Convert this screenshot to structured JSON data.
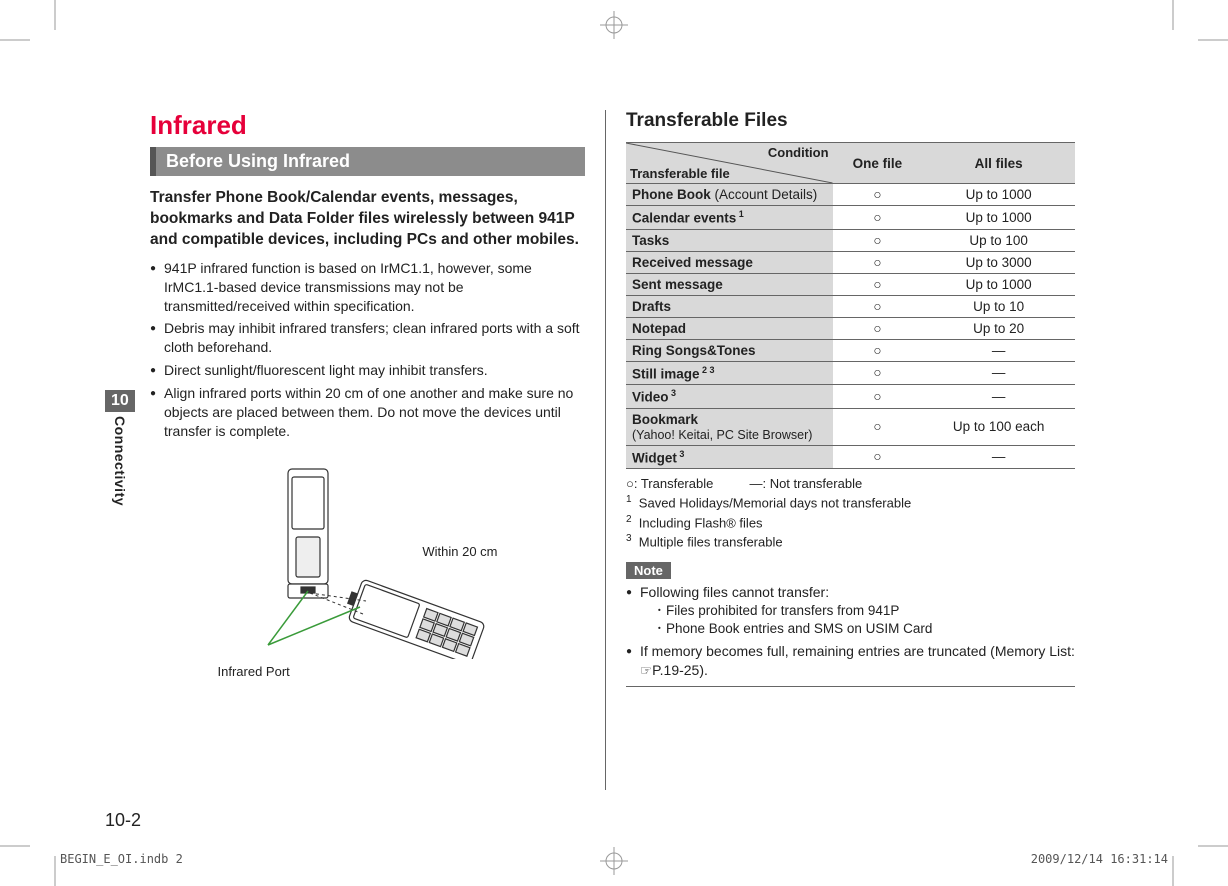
{
  "chapter": {
    "number": "10",
    "label": "Connectivity",
    "pageNumber": "10-2"
  },
  "left": {
    "title": "Infrared",
    "subhead": "Before Using Infrared",
    "lead": "Transfer Phone Book/Calendar events, messages, bookmarks and Data Folder files wirelessly between 941P and compatible devices, including PCs and other mobiles.",
    "bullets": [
      "941P infrared function is based on IrMC1.1, however, some IrMC1.1-based device transmissions may not be transmitted/received within specification.",
      "Debris may inhibit infrared transfers; clean infrared ports with a soft cloth beforehand.",
      "Direct sunlight/fluorescent light may inhibit transfers.",
      "Align infrared ports within 20 cm of one another and make sure no objects are placed between them. Do not move the devices until transfer is complete."
    ],
    "diagram": {
      "portLabel": "Infrared Port",
      "distanceLabel": "Within 20 cm"
    }
  },
  "right": {
    "title": "Transferable Files",
    "header": {
      "diagTop": "Condition",
      "diagBottom": "Transferable file",
      "col1": "One file",
      "col2": "All files"
    },
    "rows": [
      {
        "label": "Phone Book",
        "sub": " (Account Details)",
        "one": "○",
        "all": "Up to 1000"
      },
      {
        "label": "Calendar events",
        "fn": " 1",
        "one": "○",
        "all": "Up to 1000"
      },
      {
        "label": "Tasks",
        "one": "○",
        "all": "Up to 100"
      },
      {
        "label": "Received message",
        "one": "○",
        "all": "Up to 3000"
      },
      {
        "label": "Sent message",
        "one": "○",
        "all": "Up to 1000"
      },
      {
        "label": "Drafts",
        "one": "○",
        "all": "Up to 10"
      },
      {
        "label": "Notepad",
        "one": "○",
        "all": "Up to 20"
      },
      {
        "label": "Ring Songs&Tones",
        "one": "○",
        "all": "―"
      },
      {
        "label": "Still image",
        "fn": " 2  3",
        "one": "○",
        "all": "―"
      },
      {
        "label": "Video",
        "fn": " 3",
        "one": "○",
        "all": "―"
      },
      {
        "label": "Bookmark",
        "sub2": "(Yahoo! Keitai, PC Site Browser)",
        "one": "○",
        "all": "Up to 100 each"
      },
      {
        "label": "Widget",
        "fn": " 3",
        "one": "○",
        "all": "―"
      }
    ],
    "legend": {
      "line1a": "○: Transferable",
      "line1b": "―: Not transferable",
      "fn1": "Saved Holidays/Memorial days not transferable",
      "fn2": "Including Flash® files",
      "fn3": "Multiple files transferable"
    },
    "note": {
      "label": "Note",
      "b1": "Following files cannot transfer:",
      "s1": "Files prohibited for transfers from 941P",
      "s2": "Phone Book entries and SMS on USIM Card",
      "b2a": "If memory becomes full, remaining entries are truncated (Memory List: ",
      "b2b": "P.19-25)."
    }
  },
  "footer": {
    "left": "BEGIN_E_OI.indb   2",
    "right": "2009/12/14   16:31:14"
  }
}
